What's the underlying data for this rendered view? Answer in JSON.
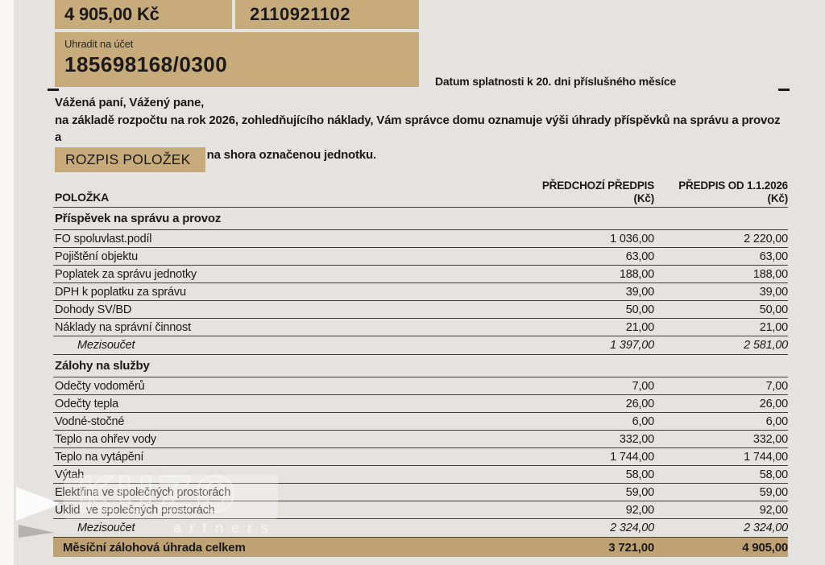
{
  "payment_summary": {
    "amount": "4 905,00 Kč",
    "variable_symbol": "2110921102",
    "account_label": "Uhradit na účet",
    "account_number": "185698168/0300",
    "due_date_note": "Datum splatnosti k 20. dni příslušného měsíce"
  },
  "intro": {
    "line1": "Vážená paní, Vážený pane,",
    "line2": "na základě rozpočtu na rok 2026, zohledňujícího náklady, Vám správce domu oznamuje výši úhrady příspěvků na správu a provoz a",
    "line3": "záloh na služby připadající na shora označenou jednotku."
  },
  "section_title": "ROZPIS POLOŽEK",
  "table": {
    "headers": {
      "item": "POLOŽKA",
      "prev_line1": "PŘEDCHOZÍ PŘEDPIS",
      "prev_line2": "(Kč)",
      "new_line1": "PŘEDPIS OD 1.1.2026",
      "new_line2": "(Kč)"
    },
    "rows": [
      {
        "type": "section",
        "label": "Příspěvek na správu a provoz",
        "prev": "",
        "new": ""
      },
      {
        "type": "item",
        "label": "FO spoluvlast.podíl",
        "prev": "1 036,00",
        "new": "2 220,00"
      },
      {
        "type": "item",
        "label": "Pojištění objektu",
        "prev": "63,00",
        "new": "63,00"
      },
      {
        "type": "item",
        "label": "Poplatek za správu jednotky",
        "prev": "188,00",
        "new": "188,00"
      },
      {
        "type": "item",
        "label": "DPH k poplatku za správu",
        "prev": "39,00",
        "new": "39,00"
      },
      {
        "type": "item",
        "label": "Dohody SV/BD",
        "prev": "50,00",
        "new": "50,00"
      },
      {
        "type": "item",
        "label": "Náklady na správní činnost",
        "prev": "21,00",
        "new": "21,00"
      },
      {
        "type": "subtotal",
        "label": "Mezisoučet",
        "prev": "1 397,00",
        "new": "2 581,00"
      },
      {
        "type": "section",
        "label": "Zálohy na služby",
        "prev": "",
        "new": ""
      },
      {
        "type": "item",
        "label": "Odečty vodoměrů",
        "prev": "7,00",
        "new": "7,00"
      },
      {
        "type": "item",
        "label": "Odečty tepla",
        "prev": "26,00",
        "new": "26,00"
      },
      {
        "type": "item",
        "label": "Vodné-stočné",
        "prev": "6,00",
        "new": "6,00"
      },
      {
        "type": "item",
        "label": "Teplo na ohřev vody",
        "prev": "332,00",
        "new": "332,00"
      },
      {
        "type": "item",
        "label": "Teplo na vytápění",
        "prev": "1 744,00",
        "new": "1 744,00"
      },
      {
        "type": "item",
        "label": "Výtah",
        "prev": "58,00",
        "new": "58,00"
      },
      {
        "type": "item",
        "label": "Elektřina ve společných prostorách",
        "prev": "59,00",
        "new": "59,00"
      },
      {
        "type": "item",
        "label": "Úklid  ve společných prostorách",
        "prev": "92,00",
        "new": "92,00"
      },
      {
        "type": "subtotal",
        "label": "Mezisoučet",
        "prev": "2 324,00",
        "new": "2 324,00"
      },
      {
        "type": "total",
        "label": "Měsíční zálohová úhrada celkem",
        "prev": "3 721,00",
        "new": "4 905,00"
      }
    ]
  },
  "watermark": {
    "large_text": "KUZO",
    "small_text": "artners"
  },
  "colors": {
    "tan": "#c7ab7b",
    "highlight_row": "#bfa273",
    "background": "#e5e3e0",
    "line": "#403e3a"
  }
}
